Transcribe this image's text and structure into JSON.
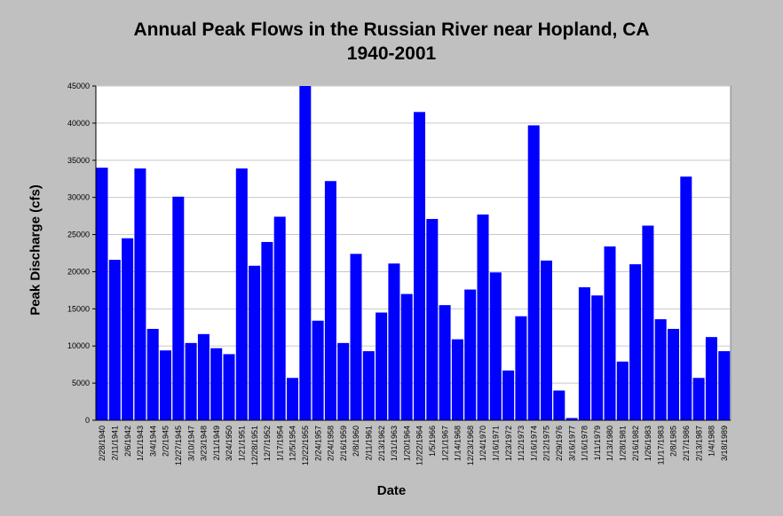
{
  "chart_data": {
    "type": "bar",
    "title": "Annual Peak Flows in the Russian River near Hopland, CA",
    "subtitle": "1940-2001",
    "xlabel": "Date",
    "ylabel": "Peak Discharge (cfs)",
    "ylim": [
      0,
      45000
    ],
    "yticks": [
      0,
      5000,
      10000,
      15000,
      20000,
      25000,
      30000,
      35000,
      40000,
      45000
    ],
    "grid": true,
    "bar_color": "#0000ff",
    "plot_background": "#ffffff",
    "categories": [
      "2/28/1940",
      "2/11/1941",
      "2/6/1942",
      "1/21/1943",
      "3/4/1944",
      "2/2/1945",
      "12/27/1945",
      "3/10/1947",
      "3/23/1948",
      "2/11/1949",
      "3/24/1950",
      "1/21/1951",
      "12/28/1951",
      "12/7/1952",
      "1/17/1954",
      "12/5/1954",
      "12/22/1955",
      "2/24/1957",
      "2/24/1958",
      "2/16/1959",
      "2/8/1960",
      "2/11/1961",
      "2/13/1962",
      "1/31/1963",
      "1/20/1964",
      "12/22/1964",
      "1/5/1966",
      "1/21/1967",
      "1/14/1968",
      "12/23/1968",
      "1/24/1970",
      "1/16/1971",
      "1/23/1972",
      "1/12/1973",
      "1/16/1974",
      "2/12/1975",
      "2/29/1976",
      "3/16/1977",
      "1/16/1978",
      "1/11/1979",
      "1/13/1980",
      "1/28/1981",
      "2/16/1982",
      "1/26/1983",
      "11/17/1983",
      "2/8/1985",
      "2/17/1986",
      "2/13/1987",
      "1/4/1988",
      "3/18/1989"
    ],
    "values": [
      34000,
      21600,
      24500,
      33900,
      12300,
      9400,
      30100,
      10400,
      11600,
      9700,
      8900,
      33900,
      20800,
      24000,
      27400,
      5700,
      45000,
      13400,
      32200,
      10400,
      22400,
      9300,
      14500,
      21100,
      17000,
      41500,
      27100,
      15500,
      10900,
      17600,
      27700,
      19900,
      6700,
      14000,
      39700,
      21500,
      4000,
      300,
      17900,
      16800,
      23400,
      7900,
      21000,
      26200,
      13600,
      12300,
      32800,
      5700,
      11200,
      9300
    ]
  }
}
